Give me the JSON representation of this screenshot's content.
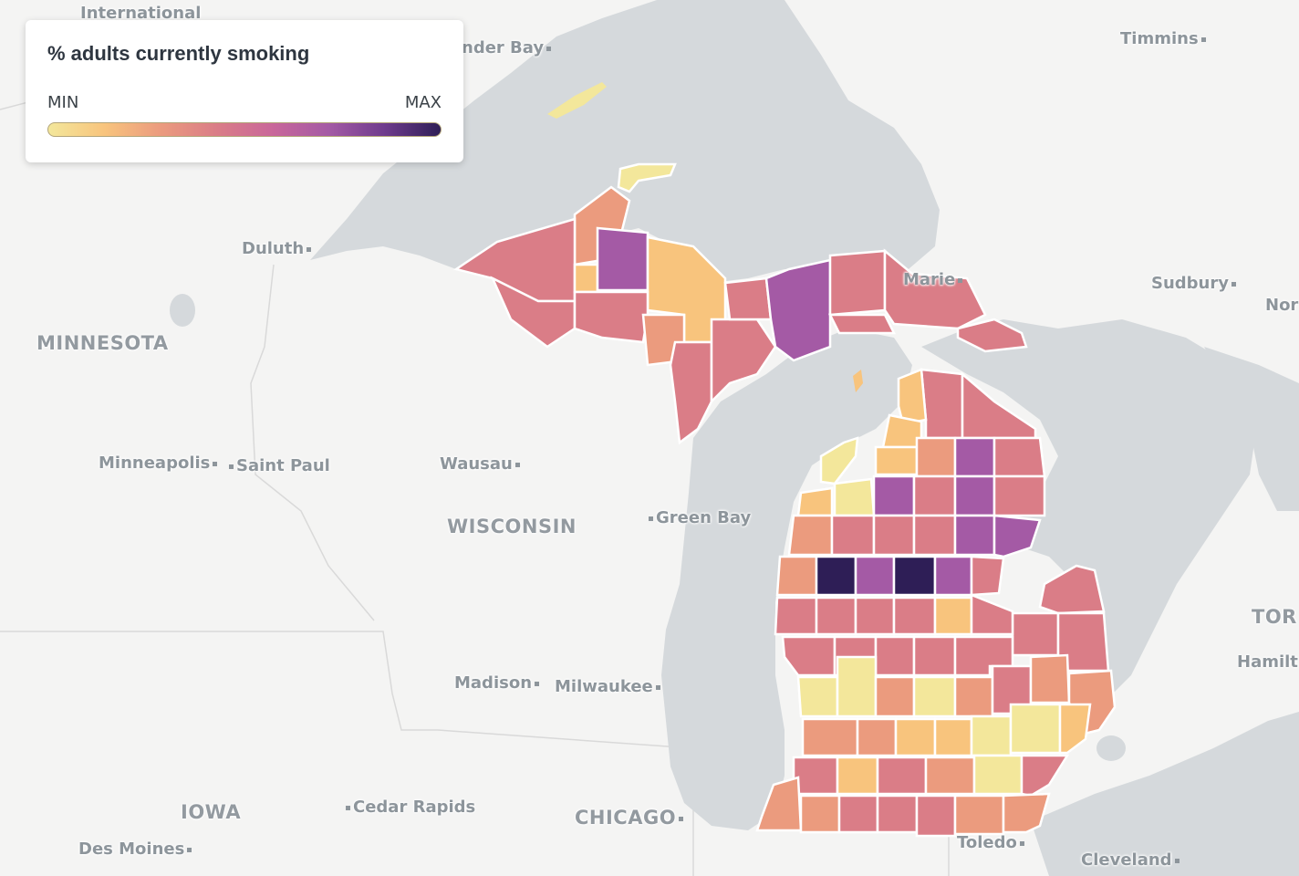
{
  "legend": {
    "title": "% adults currently smoking",
    "min_label": "MIN",
    "max_label": "MAX",
    "gradient": [
      "#f3e79b",
      "#f8c47d",
      "#eb9b7e",
      "#da7d87",
      "#c9679a",
      "#a45aa5",
      "#6f3b8d",
      "#2e1e56"
    ]
  },
  "colors": {
    "water": "#d5d9dc",
    "land": "#f4f4f3",
    "county_border": "#ffffff"
  },
  "labels": {
    "international": "International",
    "thunder_bay": "nder Bay",
    "timmins": "Timmins",
    "duluth": "Duluth",
    "sault": "Marie",
    "sudbury": "Sudbury",
    "north": "Nor",
    "minnesota": "MINNESOTA",
    "minneapolis": "Minneapolis",
    "saint_paul": "Saint Paul",
    "wausau": "Wausau",
    "wisconsin": "WISCONSIN",
    "green_bay": "Green Bay",
    "toronto": "TOR",
    "hamilton": "Hamilt",
    "madison": "Madison",
    "milwaukee": "Milwaukee",
    "iowa": "IOWA",
    "cedar_rapids": "Cedar Rapids",
    "chicago": "CHICAGO",
    "des_moines": "Des Moines",
    "toledo": "Toledo",
    "cleveland": "Cleveland"
  }
}
